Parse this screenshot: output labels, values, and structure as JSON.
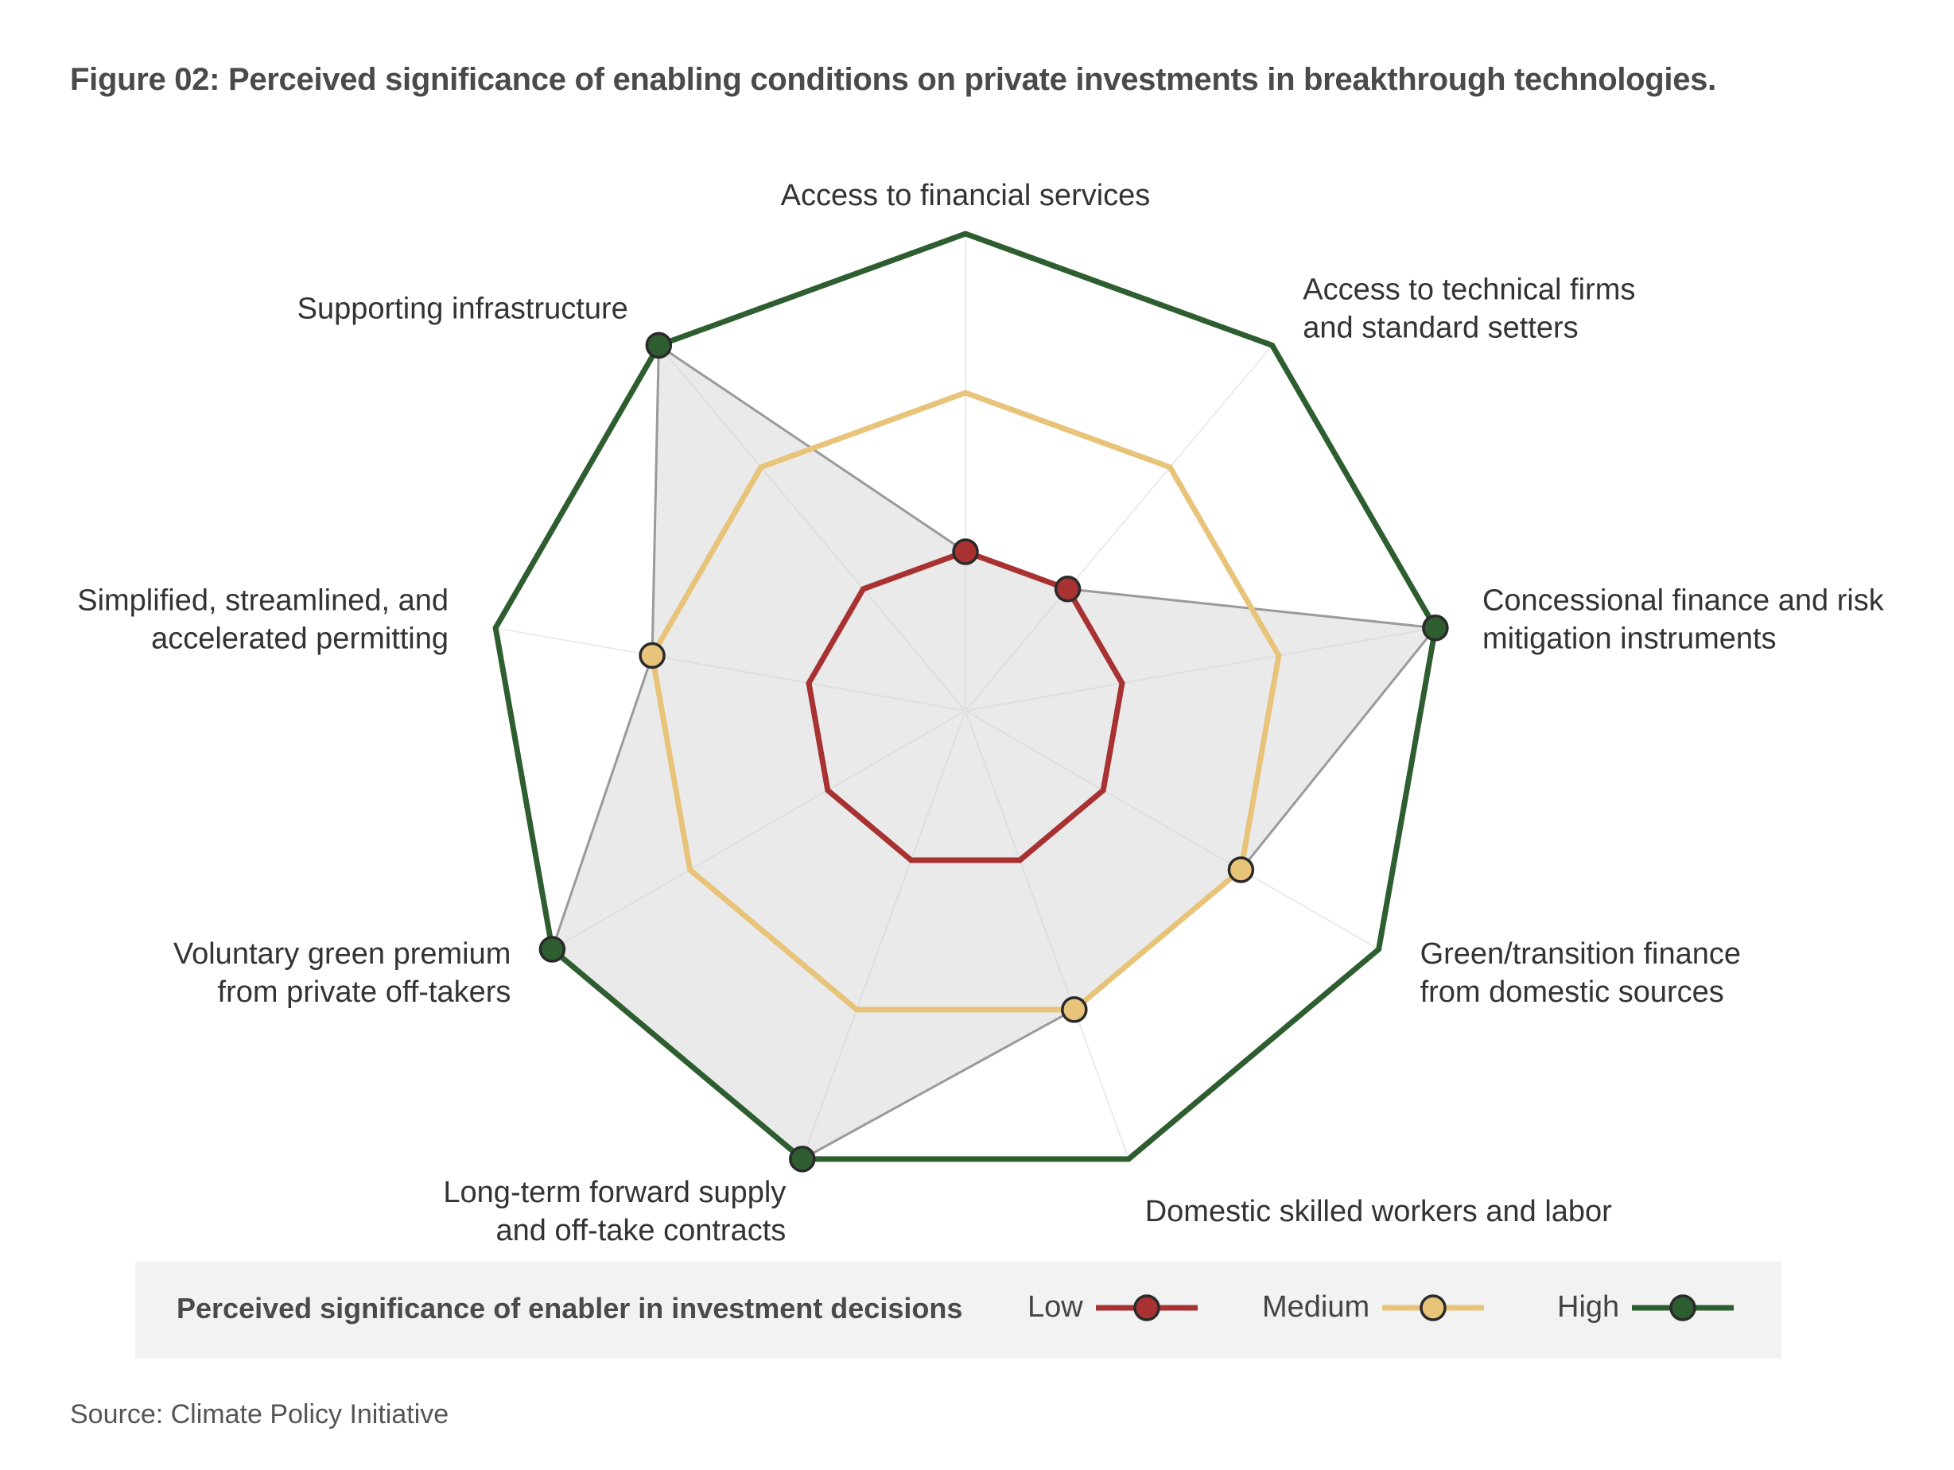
{
  "title": "Figure 02: Perceived significance of enabling conditions on private investments in breakthrough technologies.",
  "source": "Source: Climate Policy Initiative",
  "legend": {
    "title": "Perceived significance of enabler in investment decisions",
    "items": [
      {
        "label": "Low",
        "color": "#a83232"
      },
      {
        "label": "Medium",
        "color": "#e8c47a"
      },
      {
        "label": "High",
        "color": "#2e5e30"
      }
    ]
  },
  "chart_data": {
    "type": "radar",
    "scale_max": 3,
    "axes": [
      {
        "label_lines": [
          "Access to financial services"
        ],
        "anchor": "middle"
      },
      {
        "label_lines": [
          "Access to technical firms",
          "and standard setters"
        ],
        "anchor": "start"
      },
      {
        "label_lines": [
          "Concessional finance and risk",
          "mitigation instruments"
        ],
        "anchor": "start"
      },
      {
        "label_lines": [
          "Green/transition finance",
          "from domestic sources"
        ],
        "anchor": "start"
      },
      {
        "label_lines": [
          "Domestic skilled workers and labor"
        ],
        "anchor": "start"
      },
      {
        "label_lines": [
          "Long-term forward supply",
          "and off-take contracts"
        ],
        "anchor": "end"
      },
      {
        "label_lines": [
          "Voluntary green premium",
          "from private off-takers"
        ],
        "anchor": "end"
      },
      {
        "label_lines": [
          "Simplified, streamlined, and",
          "accelerated permitting"
        ],
        "anchor": "end"
      },
      {
        "label_lines": [
          "Supporting infrastructure"
        ],
        "anchor": "end"
      }
    ],
    "rings": [
      {
        "name": "Low",
        "value": 1,
        "color": "#a83232"
      },
      {
        "name": "Medium",
        "value": 2,
        "color": "#e8c47a"
      },
      {
        "name": "High",
        "value": 3,
        "color": "#2e5e30"
      }
    ],
    "ratings": [
      1,
      1,
      3,
      2,
      2,
      3,
      3,
      2,
      3
    ]
  }
}
